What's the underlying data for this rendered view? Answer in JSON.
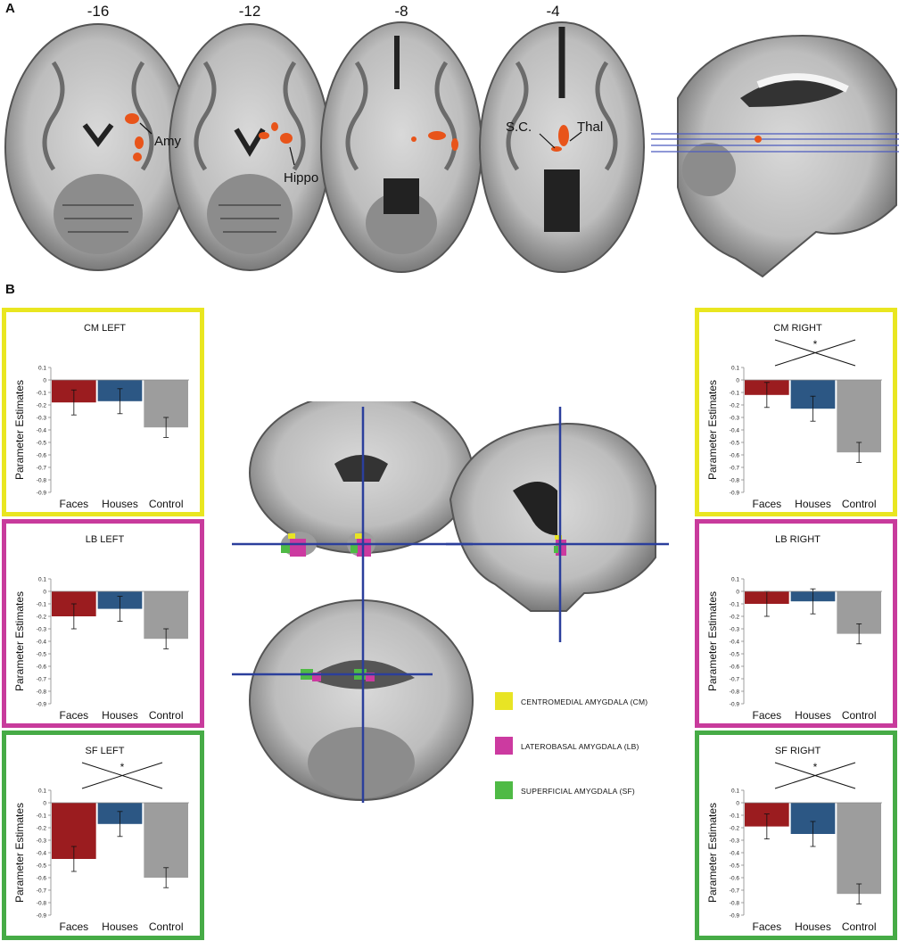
{
  "panel_a": {
    "letter": "A",
    "slice_labels": [
      "-16",
      "-12",
      "-8",
      "-4"
    ],
    "annotations": [
      "Amy",
      "Hippo",
      "S.C.",
      "Thal"
    ]
  },
  "panel_b": {
    "letter": "B",
    "legend": [
      {
        "label": "CENTROMEDIAL AMYGDALA (CM)",
        "color": "#e8e424"
      },
      {
        "label": "LATEROBASAL AMYGDALA (LB)",
        "color": "#cc3aa0"
      },
      {
        "label": "SUPERFICIAL AMYGDALA (SF)",
        "color": "#4fba45"
      }
    ]
  },
  "colors": {
    "faces": "#9b1c1f",
    "houses": "#2c5784",
    "control": "#9d9d9d",
    "cm_frame": "#e9e620",
    "lb_frame": "#c83b9c",
    "sf_frame": "#46ab46",
    "crosshair": "#2b3f9c"
  },
  "chart_data": [
    {
      "id": "cm-left",
      "type": "bar",
      "title": "CM LEFT",
      "ylabel": "Parameter Estimates",
      "categories": [
        "Faces",
        "Houses",
        "Control"
      ],
      "values": [
        -0.18,
        -0.17,
        -0.38
      ],
      "errors": [
        0.1,
        0.1,
        0.08
      ],
      "ylim": [
        -0.9,
        0.1
      ],
      "yticks": [
        "0.1",
        "0",
        "-0.1",
        "-0.2",
        "-0.3",
        "-0.4",
        "-0.5",
        "-0.6",
        "-0.7",
        "-0.8",
        "-0.9"
      ],
      "significance": ""
    },
    {
      "id": "lb-left",
      "type": "bar",
      "title": "LB LEFT",
      "ylabel": "Parameter Estimates",
      "categories": [
        "Faces",
        "Houses",
        "Control"
      ],
      "values": [
        -0.2,
        -0.14,
        -0.38
      ],
      "errors": [
        0.1,
        0.1,
        0.08
      ],
      "ylim": [
        -0.9,
        0.1
      ],
      "yticks": [
        "0.1",
        "0",
        "-0.1",
        "-0.2",
        "-0.3",
        "-0.4",
        "-0.5",
        "-0.6",
        "-0.7",
        "-0.8",
        "-0.9"
      ],
      "significance": ""
    },
    {
      "id": "sf-left",
      "type": "bar",
      "title": "SF LEFT",
      "ylabel": "Parameter Estimates",
      "categories": [
        "Faces",
        "Houses",
        "Control"
      ],
      "values": [
        -0.45,
        -0.17,
        -0.6
      ],
      "errors": [
        0.1,
        0.1,
        0.08
      ],
      "ylim": [
        -0.9,
        0.1
      ],
      "yticks": [
        "0.1",
        "0",
        "-0.1",
        "-0.2",
        "-0.3",
        "-0.4",
        "-0.5",
        "-0.6",
        "-0.7",
        "-0.8",
        "-0.9"
      ],
      "significance": "*"
    },
    {
      "id": "cm-right",
      "type": "bar",
      "title": "CM RIGHT",
      "ylabel": "Parameter Estimates",
      "categories": [
        "Faces",
        "Houses",
        "Control"
      ],
      "values": [
        -0.12,
        -0.23,
        -0.58
      ],
      "errors": [
        0.1,
        0.1,
        0.08
      ],
      "ylim": [
        -0.9,
        0.1
      ],
      "yticks": [
        "0.1",
        "0",
        "-0.1",
        "-0.2",
        "-0.3",
        "-0.4",
        "-0.5",
        "-0.6",
        "-0.7",
        "-0.8",
        "-0.9"
      ],
      "significance": "*"
    },
    {
      "id": "lb-right",
      "type": "bar",
      "title": "LB RIGHT",
      "ylabel": "Parameter Estimates",
      "categories": [
        "Faces",
        "Houses",
        "Control"
      ],
      "values": [
        -0.1,
        -0.08,
        -0.34
      ],
      "errors": [
        0.1,
        0.1,
        0.08
      ],
      "ylim": [
        -0.9,
        0.1
      ],
      "yticks": [
        "0.1",
        "0",
        "-0.1",
        "-0.2",
        "-0.3",
        "-0.4",
        "-0.5",
        "-0.6",
        "-0.7",
        "-0.8",
        "-0.9"
      ],
      "significance": ""
    },
    {
      "id": "sf-right",
      "type": "bar",
      "title": "SF RIGHT",
      "ylabel": "Parameter Estimates",
      "categories": [
        "Faces",
        "Houses",
        "Control"
      ],
      "values": [
        -0.19,
        -0.25,
        -0.73
      ],
      "errors": [
        0.1,
        0.1,
        0.08
      ],
      "ylim": [
        -0.9,
        0.1
      ],
      "yticks": [
        "0.1",
        "0",
        "-0.1",
        "-0.2",
        "-0.3",
        "-0.4",
        "-0.5",
        "-0.6",
        "-0.7",
        "-0.8",
        "-0.9"
      ],
      "significance": "*"
    }
  ]
}
